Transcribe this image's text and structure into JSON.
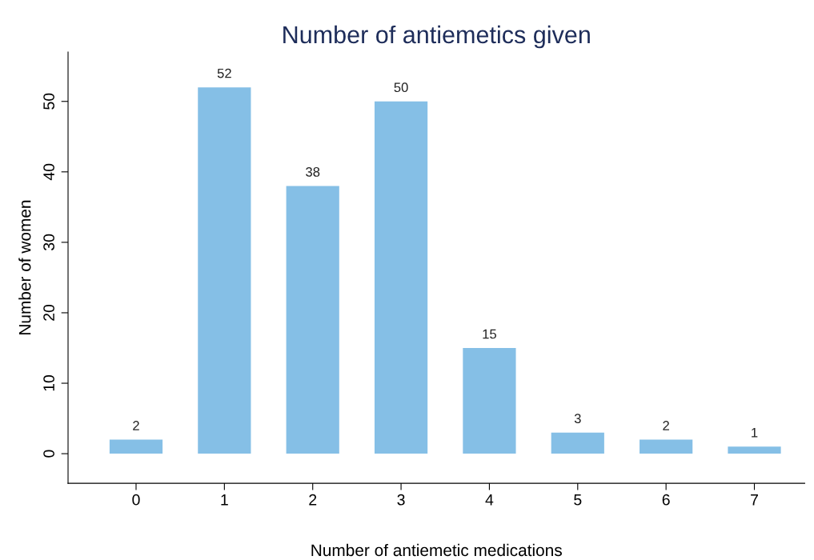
{
  "chart_data": {
    "type": "bar",
    "title": "Number of antiemetics given",
    "xlabel": "Number of antiemetic medications",
    "ylabel": "Number of women",
    "categories": [
      "0",
      "1",
      "2",
      "3",
      "4",
      "5",
      "6",
      "7"
    ],
    "values": [
      2,
      52,
      38,
      50,
      15,
      3,
      2,
      1
    ],
    "color": "#85bfe6",
    "ylim": [
      -4.2,
      57
    ],
    "yticks": [
      0,
      10,
      20,
      30,
      40,
      50
    ],
    "data_labels": true,
    "grid": false,
    "legend": false
  }
}
